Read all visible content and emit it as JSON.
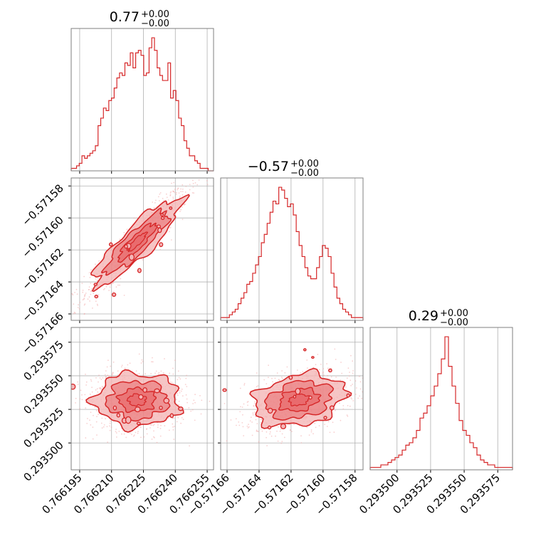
{
  "colors": {
    "series": "#d62728",
    "fill_light": "#f4b6b7",
    "fill_mid": "#e8696b",
    "points": "#f2a9aa",
    "grid": "#b0b0b0",
    "frame": "#7f7f7f"
  },
  "chart_data": {
    "type": "corner",
    "parameters": [
      {
        "title": "0.77",
        "err_plus": "+0.00",
        "err_minus": "−0.00",
        "center": 0.766222,
        "sigma": 9.5e-06,
        "range": [
          0.766191,
          0.766258
        ],
        "ticks": [
          0.766195,
          0.76621,
          0.766225,
          0.76624,
          0.766255
        ],
        "tick_labels": [
          "0.766195",
          "0.766210",
          "0.766225",
          "0.766240",
          "0.766255"
        ]
      },
      {
        "title": "−0.57",
        "err_plus": "+0.00",
        "err_minus": "−0.00",
        "center": -0.571615,
        "sigma": 1.35e-05,
        "range": [
          -0.571664,
          -0.571575
        ],
        "ticks": [
          -0.57166,
          -0.57164,
          -0.57162,
          -0.5716,
          -0.57158
        ],
        "tick_labels": [
          "−0.57166",
          "−0.57164",
          "−0.57162",
          "−0.57160",
          "−0.57158"
        ]
      },
      {
        "title": "0.29",
        "err_plus": "+0.00",
        "err_minus": "−0.00",
        "center": 0.293532,
        "sigma": 9.5e-06,
        "range": [
          0.29348,
          0.293586
        ],
        "ticks": [
          0.2935,
          0.293525,
          0.29355,
          0.293575
        ],
        "tick_labels": [
          "0.293500",
          "0.293525",
          "0.293550",
          "0.293575"
        ]
      }
    ],
    "histograms": [
      {
        "param": 0,
        "counts": [
          1,
          1,
          2,
          3,
          6,
          5,
          6,
          7,
          8,
          10,
          18,
          21,
          25,
          24,
          28,
          29,
          33,
          37,
          39,
          38,
          43,
          42,
          47,
          41,
          47,
          48,
          46,
          38,
          39,
          49,
          53,
          48,
          41,
          38,
          36,
          36,
          43,
          29,
          32,
          28,
          21,
          18,
          12,
          9,
          6,
          6,
          4,
          3,
          1,
          1,
          1,
          0,
          0
        ]
      },
      {
        "param": 1,
        "counts": [
          1,
          1,
          1,
          2,
          3,
          4,
          6,
          8,
          10,
          13,
          14,
          17,
          20,
          23,
          28,
          31,
          35,
          39,
          43,
          42,
          48,
          47,
          44,
          41,
          42,
          38,
          32,
          27,
          23,
          19,
          16,
          15,
          15,
          19,
          23,
          27,
          26,
          23,
          17,
          12,
          8,
          6,
          4,
          3,
          2,
          1,
          1,
          1,
          1
        ]
      },
      {
        "param": 2,
        "counts": [
          1,
          1,
          1,
          2,
          2,
          3,
          4,
          5,
          6,
          8,
          10,
          11,
          13,
          16,
          21,
          23,
          26,
          30,
          34,
          39,
          45,
          54,
          42,
          34,
          27,
          20,
          16,
          14,
          11,
          9,
          6,
          4,
          3,
          2,
          2,
          1,
          1,
          1,
          1,
          1
        ]
      }
    ],
    "pairs": [
      {
        "x_param": 0,
        "y_param": 1,
        "correlation": 0.92
      },
      {
        "x_param": 0,
        "y_param": 2,
        "correlation": 0.0
      },
      {
        "x_param": 1,
        "y_param": 2,
        "correlation": 0.35
      }
    ]
  }
}
